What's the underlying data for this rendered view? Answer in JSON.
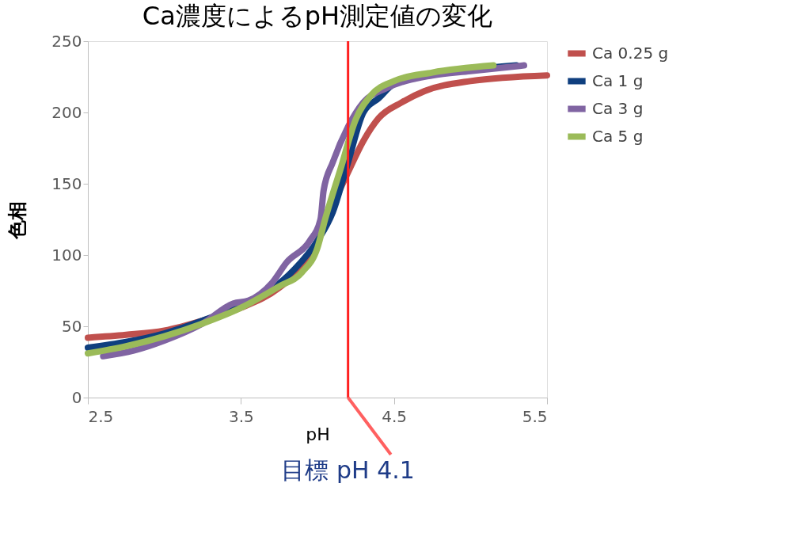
{
  "chart_data": {
    "type": "line",
    "title": "Ca濃度によるpH測定値の変化",
    "xlabel": "pH",
    "ylabel": "色相",
    "xlim": [
      2.5,
      5.5
    ],
    "xticks": [
      2.5,
      3.5,
      4.5,
      5.5
    ],
    "ylim": [
      0,
      250
    ],
    "yticks": [
      0,
      50,
      100,
      150,
      200,
      250
    ],
    "grid": false,
    "legend": "right",
    "marker": "none",
    "line_style": "solid",
    "series": [
      {
        "name": "Ca 0.25 g",
        "color": "#c0504d",
        "x": [
          2.5,
          2.75,
          3.0,
          3.25,
          3.5,
          3.75,
          3.9,
          4.0,
          4.1,
          4.2,
          4.3,
          4.4,
          4.55,
          4.7,
          5.0,
          5.5
        ],
        "values": [
          42,
          44,
          47,
          54,
          63,
          77,
          92,
          110,
          135,
          158,
          180,
          196,
          207,
          215,
          222,
          226
        ]
      },
      {
        "name": "Ca 1 g",
        "color": "#0f3f7f",
        "x": [
          2.5,
          2.75,
          3.0,
          3.25,
          3.5,
          3.7,
          3.85,
          4.0,
          4.1,
          4.2,
          4.3,
          4.4,
          4.5,
          4.75,
          5.0,
          5.3
        ],
        "values": [
          35,
          39,
          45,
          54,
          65,
          76,
          90,
          110,
          130,
          165,
          200,
          210,
          220,
          227,
          230,
          233
        ]
      },
      {
        "name": "Ca 3 g",
        "color": "#8064a2",
        "x": [
          2.6,
          2.8,
          3.0,
          3.25,
          3.45,
          3.55,
          3.7,
          3.8,
          3.95,
          4.02,
          4.04,
          4.1,
          4.2,
          4.3,
          4.45,
          4.75,
          5.0,
          5.35
        ],
        "values": [
          29,
          33,
          40,
          52,
          66,
          68,
          80,
          95,
          110,
          125,
          145,
          165,
          190,
          207,
          217,
          226,
          229,
          233
        ]
      },
      {
        "name": "Ca 5 g",
        "color": "#9bbb59",
        "x": [
          2.5,
          2.75,
          3.0,
          3.25,
          3.5,
          3.75,
          3.9,
          4.0,
          4.05,
          4.15,
          4.25,
          4.35,
          4.5,
          4.75,
          5.15
        ],
        "values": [
          31,
          36,
          43,
          52,
          63,
          78,
          88,
          105,
          125,
          160,
          195,
          212,
          222,
          228,
          233
        ]
      }
    ],
    "ref_lines": [
      {
        "axis": "x",
        "value": 4.2,
        "color": "#ff2020"
      }
    ],
    "annotations": [
      {
        "text": "目標 pH 4.1",
        "x": 4.2,
        "y": 0
      }
    ]
  }
}
